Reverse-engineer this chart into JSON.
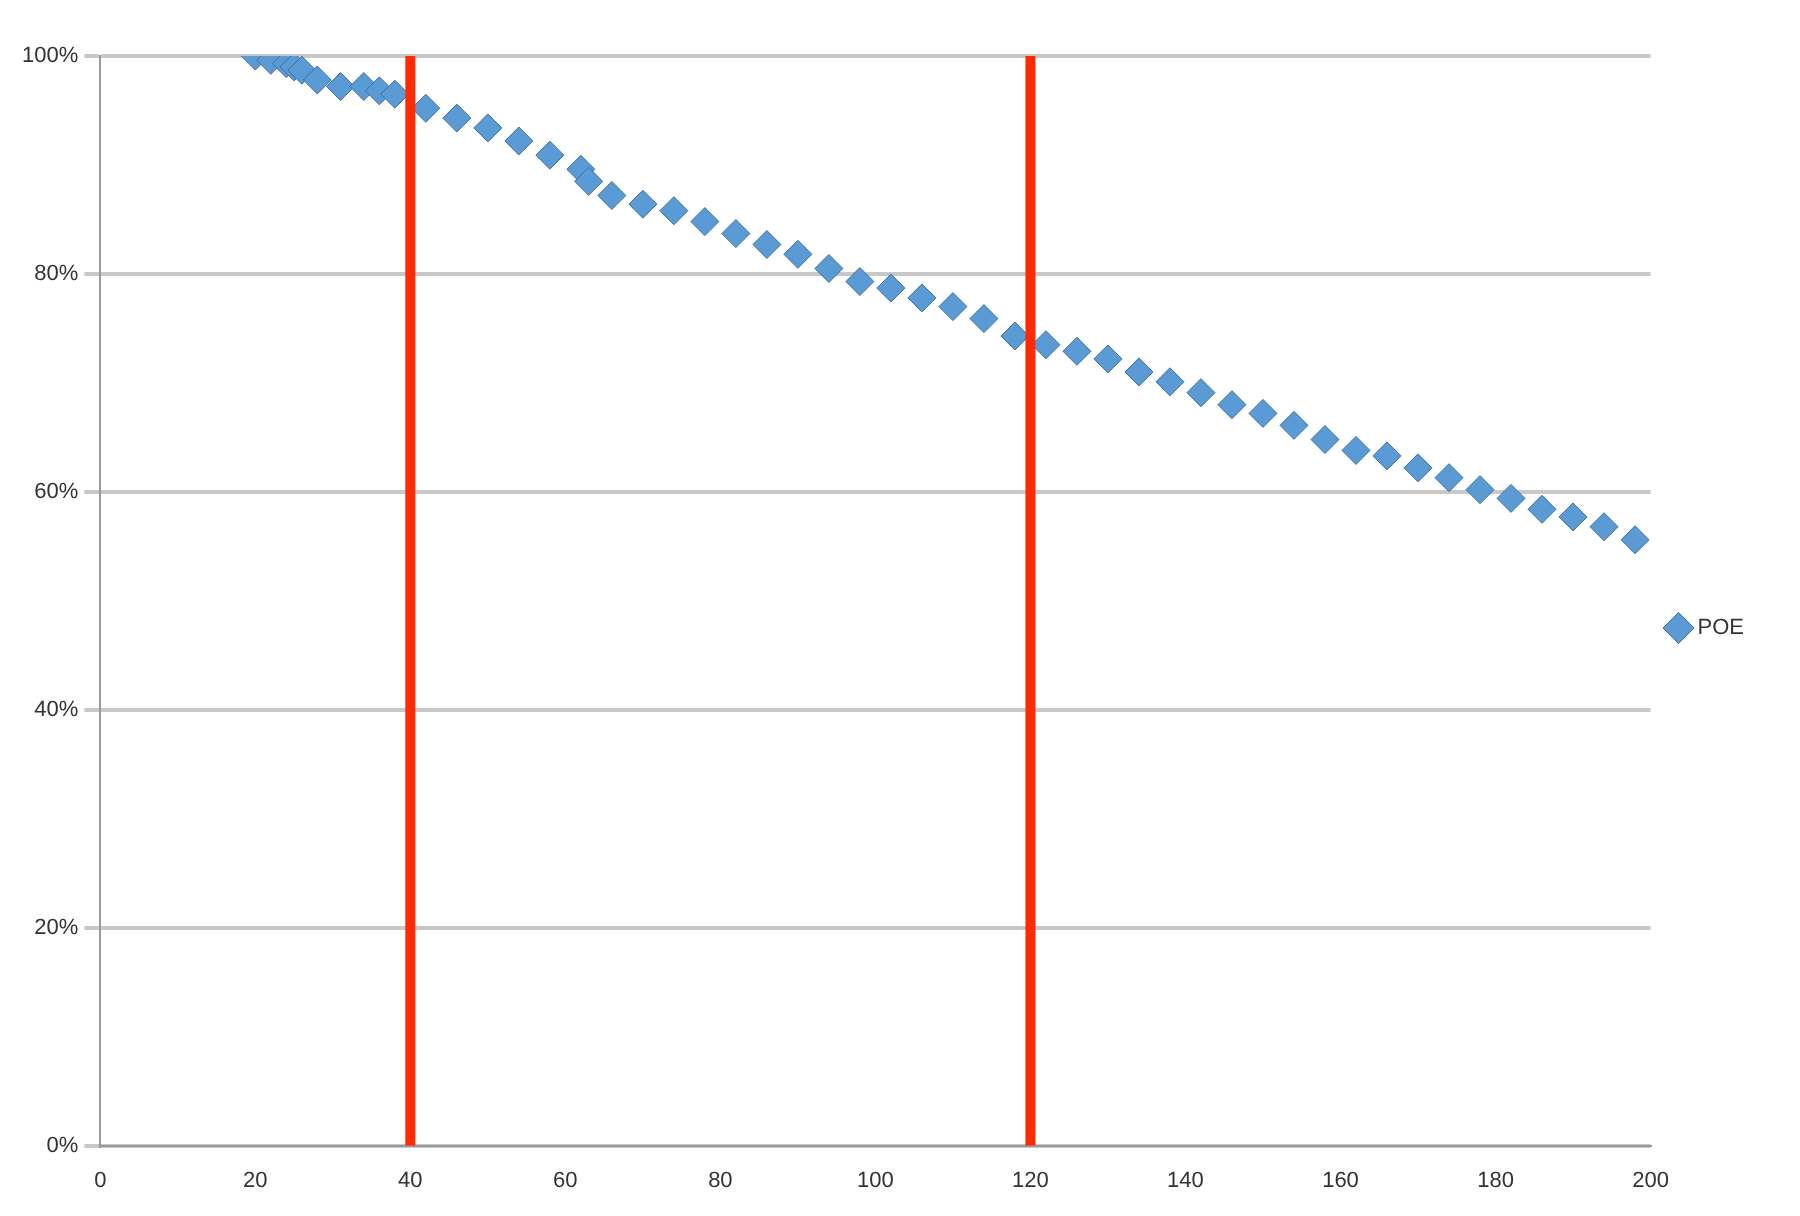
{
  "chart_data": {
    "type": "scatter",
    "marker": "diamond",
    "grid": "y",
    "legend": "right",
    "x": [
      20,
      22,
      24,
      25,
      26,
      27,
      28,
      30,
      31,
      34,
      36,
      38,
      42,
      46,
      50,
      54,
      58,
      62,
      63,
      66,
      70,
      74,
      78,
      82,
      86,
      90,
      94,
      98,
      102,
      106,
      110,
      114,
      118,
      122,
      126,
      130,
      134,
      138,
      142,
      146,
      150,
      154,
      158,
      162,
      166,
      170,
      174,
      178,
      182,
      186,
      190,
      194,
      198
    ],
    "series": [
      {
        "name": "POE",
        "color": "#5b9bd5",
        "values": [
          100,
          99.6,
          99.3,
          99,
          98.7,
          null,
          97.8,
          null,
          97.2,
          97.2,
          96.8,
          96.5,
          95.2,
          94.3,
          93.4,
          92.2,
          90.9,
          89.6,
          88.5,
          87.2,
          86.4,
          85.8,
          84.8,
          83.7,
          82.7,
          81.8,
          80.5,
          79.3,
          78.7,
          77.8,
          77,
          75.9,
          74.3,
          73.5,
          72.9,
          72.2,
          71,
          70.1,
          69.1,
          68,
          67.2,
          66.1,
          64.8,
          63.8,
          63.3,
          62.2,
          61.3,
          60.2,
          59.4,
          58.4,
          57.7,
          56.8,
          55.6
        ]
      }
    ],
    "xlim": [
      0,
      200
    ],
    "xticks": [
      0,
      20,
      40,
      60,
      80,
      100,
      120,
      140,
      160,
      180,
      200
    ],
    "ylim": [
      0,
      100
    ],
    "yticks": [
      {
        "value": 0,
        "label": "0%"
      },
      {
        "value": 20,
        "label": "20%"
      },
      {
        "value": 40,
        "label": "40%"
      },
      {
        "value": 60,
        "label": "60%"
      },
      {
        "value": 80,
        "label": "80%"
      },
      {
        "value": 100,
        "label": "100%"
      }
    ],
    "ref_lines": [
      {
        "axis": "x",
        "value": 40,
        "color": "#ff2a00"
      },
      {
        "axis": "x",
        "value": 120,
        "color": "#ff2a00"
      }
    ]
  }
}
